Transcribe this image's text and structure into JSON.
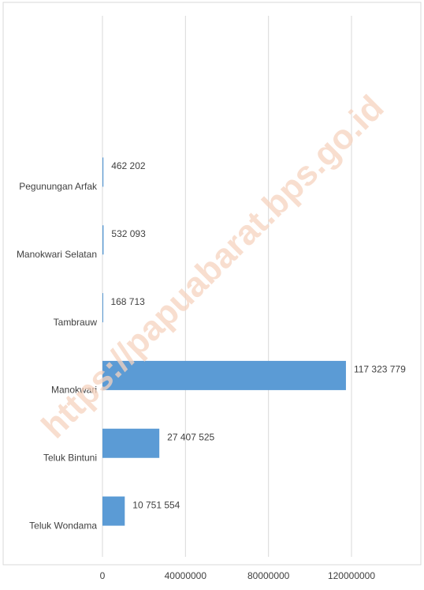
{
  "chart_data": {
    "type": "bar",
    "orientation": "horizontal",
    "categories": [
      "Pegunungan Arfak",
      "Manokwari Selatan",
      "Tambrauw",
      "Manokwari",
      "Teluk Bintuni",
      "Teluk Wondama"
    ],
    "values": [
      462202,
      532093,
      168713,
      117323779,
      27407525,
      10751554
    ],
    "value_labels": [
      "462 202",
      "532 093",
      "168 713",
      "117 323 779",
      "27 407 525",
      "10 751 554"
    ],
    "color": "#5b9bd5",
    "xlim": [
      0,
      120000000
    ],
    "xticks": [
      0,
      40000000,
      80000000,
      120000000
    ],
    "grid": true,
    "watermark": "https://papuabarat.bps.go.id"
  }
}
